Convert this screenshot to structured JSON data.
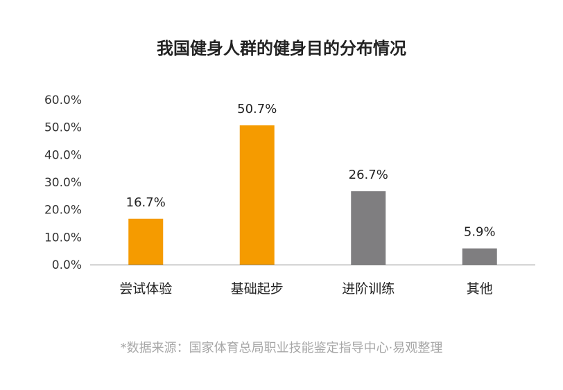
{
  "chart_data": {
    "type": "bar",
    "title": "我国健身人群的健身目的分布情况",
    "categories": [
      "尝试体验",
      "基础起步",
      "进阶训练",
      "其他"
    ],
    "values": [
      16.7,
      50.7,
      26.7,
      5.9
    ],
    "value_labels": [
      "16.7%",
      "50.7%",
      "26.7%",
      "5.9%"
    ],
    "bar_colors": [
      "#f59b00",
      "#f59b00",
      "#7f7e80",
      "#7f7e80"
    ],
    "ylim": [
      0,
      60
    ],
    "yticks": [
      0,
      10,
      20,
      30,
      40,
      50,
      60
    ],
    "ytick_labels": [
      "0.0%",
      "10.0%",
      "20.0%",
      "30.0%",
      "40.0%",
      "50.0%",
      "60.0%"
    ],
    "xlabel": "",
    "ylabel": "",
    "grid": false,
    "legend": "none"
  },
  "source_note": "*数据来源：国家体育总局职业技能鉴定指导中心·易观整理",
  "colors": {
    "accent_orange": "#f59b00",
    "accent_gray": "#7f7e80",
    "axis": "#7f7f7f",
    "source_text": "#a6a6a6"
  }
}
